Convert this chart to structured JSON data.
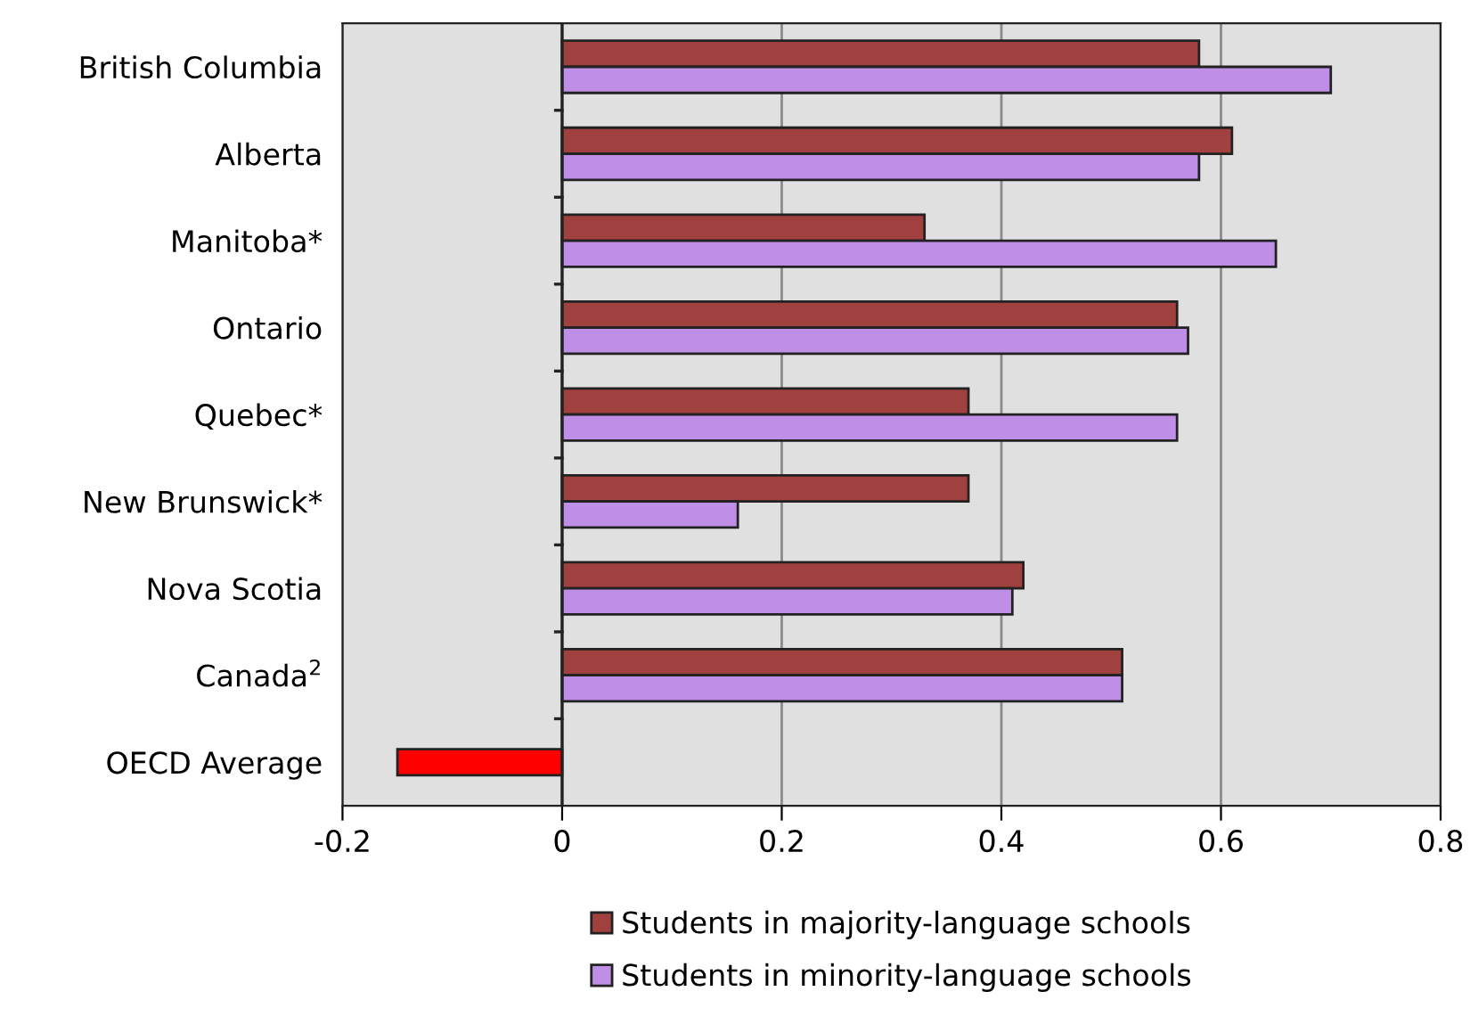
{
  "chart_data": {
    "type": "bar",
    "orientation": "horizontal",
    "categories": [
      "British Columbia",
      "Alberta",
      "Manitoba*",
      "Ontario",
      "Quebec*",
      "New Brunswick*",
      "Nova Scotia",
      "Canada$^{2}$",
      "OECD Average"
    ],
    "series": [
      {
        "name": "Students in majority-language schools",
        "color": "#a0403f",
        "values": [
          0.58,
          0.61,
          0.33,
          0.56,
          0.37,
          0.37,
          0.42,
          0.51,
          null
        ]
      },
      {
        "name": "Students in minority-language schools",
        "color": "#bf8fe8",
        "values": [
          0.7,
          0.58,
          0.65,
          0.57,
          0.56,
          0.16,
          0.41,
          0.51,
          null
        ]
      },
      {
        "color": "#ff0000",
        "values": [
          null,
          null,
          null,
          null,
          null,
          null,
          null,
          null,
          -0.15
        ]
      }
    ],
    "xlim": [
      -0.2,
      0.8
    ],
    "xticks": [
      -0.2,
      0,
      0.2,
      0.4,
      0.6,
      0.8
    ],
    "grid": "x",
    "legend": "bottom"
  }
}
